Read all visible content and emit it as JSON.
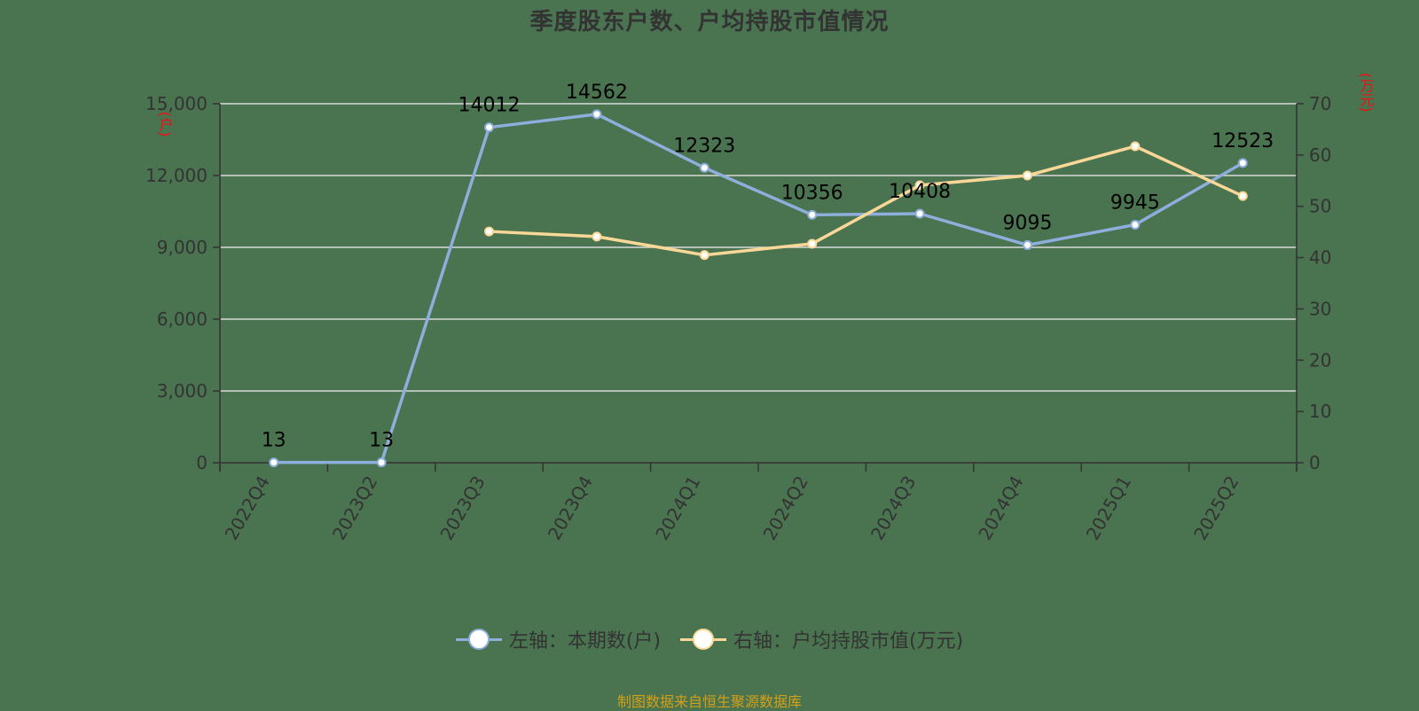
{
  "title": "季度股东户数、户均持股市值情况",
  "source_note": "制图数据来自恒生聚源数据库",
  "legend": [
    {
      "label": "左轴：本期数(户)",
      "color": "#8eaedc"
    },
    {
      "label": "右轴：户均持股市值(万元)",
      "color": "#fbd898"
    }
  ],
  "axes": {
    "left_unit": "(户)",
    "right_unit": "(万元)",
    "left_ticks": [
      "0",
      "3,000",
      "6,000",
      "9,000",
      "12,000",
      "15,000"
    ],
    "right_ticks": [
      "0",
      "10",
      "20",
      "30",
      "40",
      "50",
      "60",
      "70"
    ]
  },
  "colors": {
    "background": "#4a7350",
    "series_left": "#8eaedc",
    "series_right": "#fbd898",
    "grid": "#d9d9d9",
    "axis": "#333333",
    "unit_label": "#ee1111",
    "source": "#d4a017"
  },
  "chart_data": {
    "type": "line",
    "title": "季度股东户数、户均持股市值情况",
    "categories": [
      "2022Q4",
      "2023Q2",
      "2023Q3",
      "2023Q4",
      "2024Q1",
      "2024Q2",
      "2024Q3",
      "2024Q4",
      "2025Q1",
      "2025Q2"
    ],
    "series": [
      {
        "name": "左轴：本期数(户)",
        "axis": "left",
        "values": [
          13,
          13,
          14012,
          14562,
          12323,
          10356,
          10408,
          9095,
          9945,
          12523
        ],
        "data_labels": true
      },
      {
        "name": "右轴：户均持股市值(万元)",
        "axis": "right",
        "values": [
          null,
          null,
          45.1,
          44.1,
          40.5,
          42.7,
          54.1,
          56.0,
          61.7,
          52.0
        ],
        "data_labels": false
      }
    ],
    "xlabel": "",
    "ylabel_left": "(户)",
    "ylabel_right": "(万元)",
    "ylim_left": [
      0,
      15000
    ],
    "ylim_right": [
      0,
      70
    ],
    "grid": true,
    "legend_position": "bottom"
  }
}
